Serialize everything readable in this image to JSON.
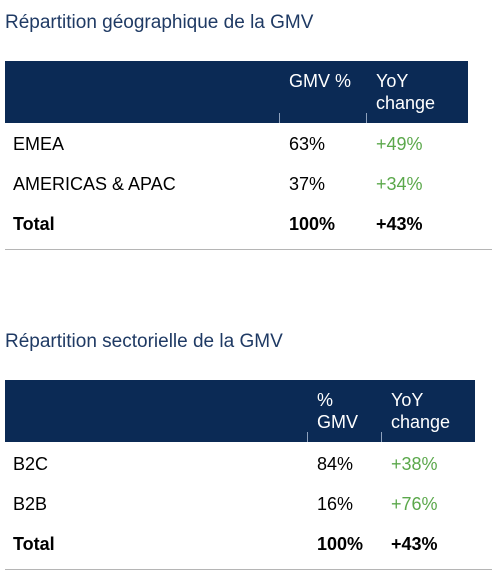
{
  "geo": {
    "title": "Répartition géographique de la GMV",
    "headers": {
      "col1": "GMV %",
      "col2_line1": "YoY",
      "col2_line2": "change"
    },
    "rows": [
      {
        "label": "EMEA",
        "share": "63%",
        "yoy": "+49%"
      },
      {
        "label": "AMERICAS & APAC",
        "share": "37%",
        "yoy": "+34%"
      }
    ],
    "total": {
      "label": "Total",
      "share": "100%",
      "yoy": "+43%"
    }
  },
  "sector": {
    "title": "Répartition sectorielle de la GMV",
    "headers": {
      "col1_line1": "%",
      "col1_line2": "GMV",
      "col2_line1": "YoY",
      "col2_line2": "change"
    },
    "rows": [
      {
        "label": "B2C",
        "share": "84%",
        "yoy": "+38%"
      },
      {
        "label": "B2B",
        "share": "16%",
        "yoy": "+76%"
      }
    ],
    "total": {
      "label": "Total",
      "share": "100%",
      "yoy": "+43%"
    }
  },
  "colors": {
    "header_bg": "#0b2a55",
    "title_text": "#1f3a64",
    "positive": "#5ba84b"
  }
}
